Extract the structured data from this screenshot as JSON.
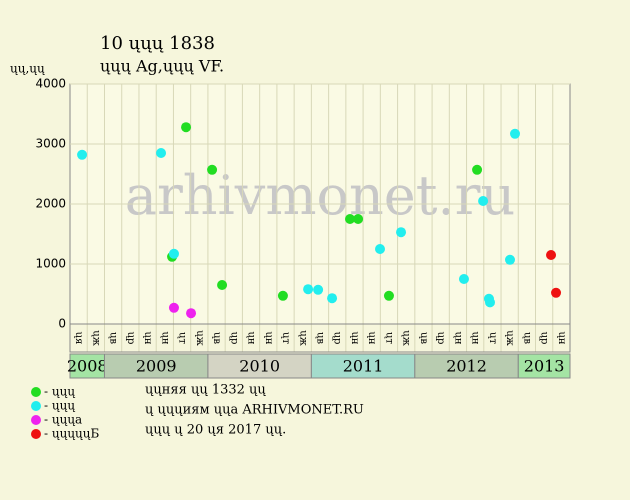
{
  "chart_data": {
    "type": "scatter",
    "title": "10 ųųų 1838",
    "subtitle": "ųųų Ag,ųųų VF.",
    "y_label": "ųų,ųų",
    "watermark": "arhivmonet.ru",
    "categories": [
      "ųя",
      "ųж",
      "ųв",
      "ųр",
      "ųн",
      "ųн",
      "ųт",
      "ųж",
      "ųв",
      "ųр",
      "ųн",
      "ųн",
      "ųт",
      "ųж",
      "ųв",
      "ųр",
      "ųн",
      "ųн",
      "ųт",
      "ųж",
      "ųв",
      "ųр",
      "ųн",
      "ųн",
      "ųт",
      "ųж",
      "ųв",
      "ųр",
      "ųн"
    ],
    "years": [
      {
        "label": "2008",
        "months": 2,
        "color": "#a4e4a4"
      },
      {
        "label": "2009",
        "months": 6,
        "color": "#b8ccb0"
      },
      {
        "label": "2010",
        "months": 6,
        "color": "#d4d4c4"
      },
      {
        "label": "2011",
        "months": 6,
        "color": "#a4dccc"
      },
      {
        "label": "2012",
        "months": 6,
        "color": "#b8ccb0"
      },
      {
        "label": "2013",
        "months": 3,
        "color": "#a4e4a4"
      }
    ],
    "xlim": [
      0,
      29
    ],
    "ylim": [
      0,
      4000
    ],
    "yticks": [
      0,
      1000,
      2000,
      3000,
      4000
    ],
    "grid": true,
    "series": [
      {
        "name": "- ųųų",
        "color": "#22dd22",
        "x": [
          5.92,
          6.73,
          8.24,
          8.82,
          12.35,
          16.24,
          16.71,
          18.5,
          23.61
        ],
        "values": [
          1120,
          3280,
          2570,
          650,
          470,
          1750,
          1750,
          470,
          2570
        ]
      },
      {
        "name": "- ųųų",
        "color": "#22eeee",
        "x": [
          0.7,
          5.28,
          6.03,
          13.81,
          14.39,
          15.2,
          17.98,
          19.2,
          22.85,
          23.96,
          24.3,
          24.36,
          25.52,
          25.81
        ],
        "values": [
          2820,
          2850,
          1170,
          580,
          570,
          430,
          1250,
          1530,
          750,
          2050,
          420,
          360,
          1070,
          3170
        ]
      },
      {
        "name": "- ųųųа",
        "color": "#ee22ee",
        "x": [
          6.03,
          7.02
        ],
        "values": [
          270,
          180
        ]
      },
      {
        "name": "- ųųųųųБ",
        "color": "#ee1111",
        "x": [
          27.9,
          28.19
        ],
        "values": [
          1150,
          520
        ]
      }
    ],
    "notes": [
      "ųųняя ųų 1332 ųų",
      "ų ųųųиям ųųа ARHIVMONET.RU",
      "ųųų ų 20 ųя 2017 ųų."
    ]
  }
}
